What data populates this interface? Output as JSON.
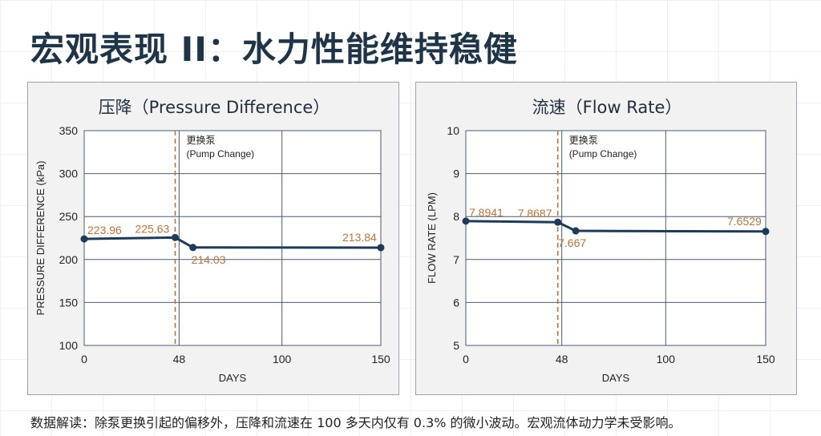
{
  "page_title": "宏观表现 II：水力性能维持稳健",
  "caption": "数据解读：除泵更换引起的偏移外，压降和流速在 100 多天内仅有 0.3% 的微小波动。宏观流体动力学未受影响。",
  "colors": {
    "line": "#1f3a57",
    "annotation": "#b8733f",
    "grid": "#4a5c70",
    "panel_bg": "#f2f2f2",
    "plot_bg": "#ffffff"
  },
  "chart_data": [
    {
      "type": "line",
      "title": "压降（Pressure Difference）",
      "xlabel": "DAYS",
      "ylabel": "PRESSURE DIFFERENCE (kPa)",
      "xlim": [
        0,
        150
      ],
      "ylim": [
        100,
        350
      ],
      "xticks": [
        0,
        48,
        100,
        150
      ],
      "yticks": [
        100,
        150,
        200,
        250,
        300,
        350
      ],
      "grid": true,
      "x": [
        0,
        46,
        55,
        150
      ],
      "values": [
        223.96,
        225.63,
        214.03,
        213.84
      ],
      "point_labels": [
        "223.96",
        "225.63",
        "214.03",
        "213.84"
      ],
      "vline": {
        "x": 46,
        "label_line1": "更换泵",
        "label_line2": "(Pump Change)"
      }
    },
    {
      "type": "line",
      "title": "流速（Flow Rate）",
      "xlabel": "DAYS",
      "ylabel": "FLOW RATE (LPM)",
      "xlim": [
        0,
        150
      ],
      "ylim": [
        5,
        10
      ],
      "xticks": [
        0,
        48,
        100,
        150
      ],
      "yticks": [
        5,
        6,
        7,
        8,
        9,
        10
      ],
      "grid": true,
      "x": [
        0,
        46,
        55,
        150
      ],
      "values": [
        7.8941,
        7.8687,
        7.667,
        7.6529
      ],
      "point_labels": [
        "7.8941",
        "7.8687",
        "7.667",
        "7.6529"
      ],
      "vline": {
        "x": 46,
        "label_line1": "更换泵",
        "label_line2": "(Pump Change)"
      }
    }
  ]
}
